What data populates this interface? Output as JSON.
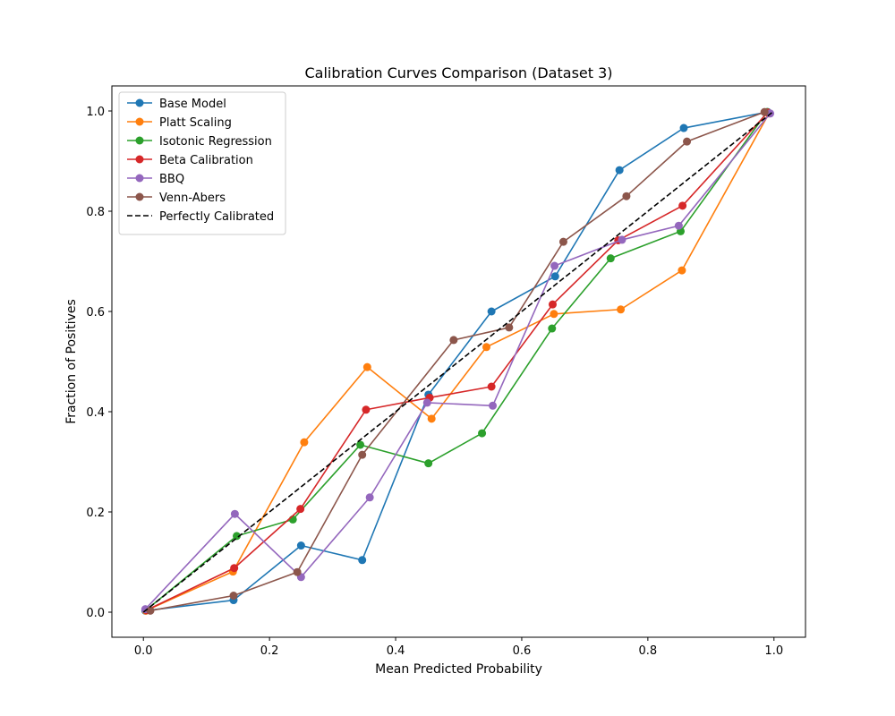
{
  "chart_data": {
    "type": "line",
    "title": "Calibration Curves Comparison (Dataset 3)",
    "xlabel": "Mean Predicted Probability",
    "ylabel": "Fraction of Positives",
    "xlim": [
      -0.05,
      1.05
    ],
    "ylim": [
      -0.05,
      1.05
    ],
    "xticks": [
      0.0,
      0.2,
      0.4,
      0.6,
      0.8,
      1.0
    ],
    "yticks": [
      0.0,
      0.2,
      0.4,
      0.6,
      0.8,
      1.0
    ],
    "xtick_labels": [
      "0.0",
      "0.2",
      "0.4",
      "0.6",
      "0.8",
      "1.0"
    ],
    "ytick_labels": [
      "0.0",
      "0.2",
      "0.4",
      "0.6",
      "0.8",
      "1.0"
    ],
    "grid": false,
    "legend_position": "upper-left",
    "series": [
      {
        "name": "Base Model",
        "color": "#1f77b4",
        "marker": "circle",
        "x": [
          0.003,
          0.143,
          0.25,
          0.347,
          0.452,
          0.552,
          0.653,
          0.755,
          0.857,
          0.99
        ],
        "y": [
          0.003,
          0.024,
          0.133,
          0.104,
          0.434,
          0.6,
          0.67,
          0.882,
          0.966,
          0.998
        ]
      },
      {
        "name": "Platt Scaling",
        "color": "#ff7f0e",
        "marker": "circle",
        "x": [
          0.004,
          0.142,
          0.255,
          0.355,
          0.457,
          0.544,
          0.651,
          0.757,
          0.854,
          0.992
        ],
        "y": [
          0.003,
          0.081,
          0.339,
          0.489,
          0.386,
          0.529,
          0.595,
          0.604,
          0.682,
          0.995
        ]
      },
      {
        "name": "Isotonic Regression",
        "color": "#2ca02c",
        "marker": "circle",
        "x": [
          0.005,
          0.148,
          0.237,
          0.344,
          0.452,
          0.537,
          0.648,
          0.741,
          0.852,
          0.989
        ],
        "y": [
          0.005,
          0.152,
          0.185,
          0.334,
          0.297,
          0.357,
          0.566,
          0.706,
          0.76,
          0.998
        ]
      },
      {
        "name": "Beta Calibration",
        "color": "#d62728",
        "marker": "circle",
        "x": [
          0.005,
          0.144,
          0.249,
          0.353,
          0.454,
          0.552,
          0.649,
          0.753,
          0.855,
          0.99
        ],
        "y": [
          0.004,
          0.088,
          0.206,
          0.404,
          0.428,
          0.45,
          0.614,
          0.742,
          0.811,
          0.997
        ]
      },
      {
        "name": "BBQ",
        "color": "#9467bd",
        "marker": "circle",
        "x": [
          0.003,
          0.145,
          0.25,
          0.359,
          0.45,
          0.554,
          0.652,
          0.759,
          0.849,
          0.994
        ],
        "y": [
          0.006,
          0.196,
          0.07,
          0.229,
          0.418,
          0.412,
          0.691,
          0.743,
          0.771,
          0.995
        ]
      },
      {
        "name": "Venn-Abers",
        "color": "#8c564b",
        "marker": "circle",
        "x": [
          0.011,
          0.143,
          0.244,
          0.347,
          0.492,
          0.58,
          0.666,
          0.766,
          0.862,
          0.985
        ],
        "y": [
          0.003,
          0.033,
          0.08,
          0.314,
          0.543,
          0.568,
          0.739,
          0.83,
          0.939,
          0.998
        ]
      },
      {
        "name": "Perfectly Calibrated",
        "color": "#000000",
        "marker": "none",
        "dashed": true,
        "x": [
          0.0,
          1.0
        ],
        "y": [
          0.0,
          1.0
        ]
      }
    ]
  }
}
